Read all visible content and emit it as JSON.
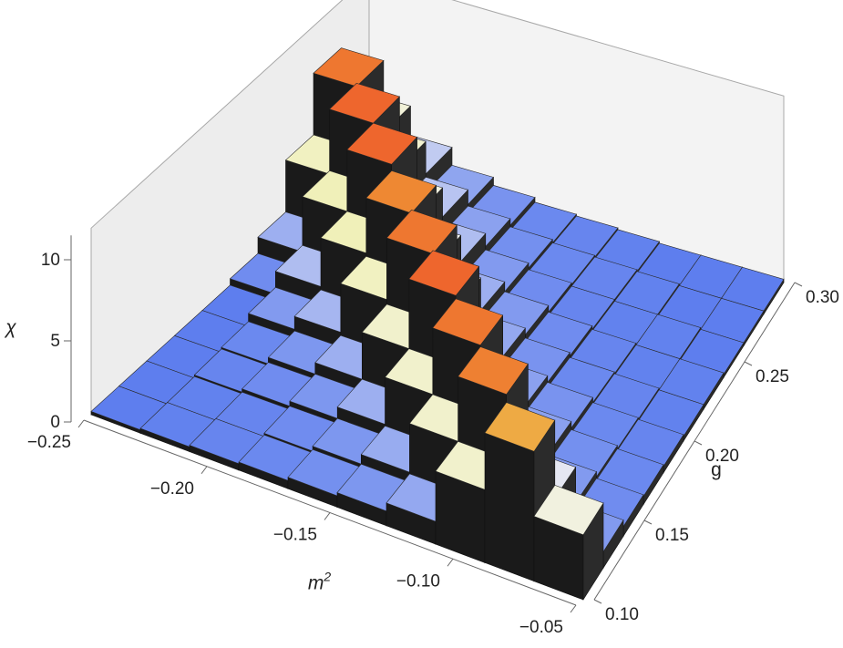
{
  "chart_data": {
    "type": "bar3d",
    "xlabel": "m",
    "xlabel_sup": "2",
    "ylabel": "g",
    "zlabel": "χ",
    "x_ticks": [
      "-0.25",
      "-0.20",
      "-0.15",
      "-0.10",
      "-0.05"
    ],
    "y_ticks": [
      "0.10",
      "0.15",
      "0.20",
      "0.25",
      "0.30"
    ],
    "z_ticks": [
      "0",
      "5",
      "10"
    ],
    "xlim": [
      -0.25,
      -0.05
    ],
    "ylim": [
      0.1,
      0.3
    ],
    "zlim": [
      0,
      12
    ],
    "x_bins": [
      -0.25,
      -0.23,
      -0.21,
      -0.19,
      -0.17,
      -0.15,
      -0.13,
      -0.11,
      -0.09,
      -0.07,
      -0.05
    ],
    "y_bins": [
      0.1,
      0.12,
      0.14,
      0.16,
      0.18,
      0.2,
      0.22,
      0.24,
      0.26,
      0.28,
      0.3
    ],
    "values": [
      [
        0.2,
        0.3,
        0.4,
        0.5,
        0.7,
        0.9,
        1.4,
        4.5,
        8.0,
        4.0
      ],
      [
        0.2,
        0.3,
        0.4,
        0.6,
        0.9,
        1.5,
        4.5,
        8.5,
        3.2,
        1.0
      ],
      [
        0.2,
        0.4,
        0.6,
        0.9,
        1.6,
        4.5,
        8.6,
        3.0,
        1.0,
        0.6
      ],
      [
        0.2,
        0.5,
        0.9,
        1.6,
        4.5,
        8.8,
        3.5,
        1.2,
        0.7,
        0.5
      ],
      [
        0.2,
        1.0,
        1.8,
        4.8,
        8.6,
        3.4,
        1.2,
        0.8,
        0.5,
        0.4
      ],
      [
        0.6,
        2.0,
        5.0,
        8.4,
        3.6,
        1.4,
        0.8,
        0.5,
        0.4,
        0.3
      ],
      [
        1.6,
        5.0,
        8.8,
        3.6,
        1.6,
        1.0,
        0.6,
        0.4,
        0.3,
        0.3
      ],
      [
        4.8,
        8.8,
        4.0,
        2.0,
        1.0,
        0.6,
        0.4,
        0.3,
        0.3,
        0.2
      ],
      [
        8.6,
        4.4,
        2.2,
        1.2,
        0.7,
        0.5,
        0.4,
        0.3,
        0.2,
        0.2
      ],
      [
        4.2,
        2.4,
        1.3,
        0.8,
        0.5,
        0.4,
        0.3,
        0.2,
        0.2,
        0.2
      ]
    ],
    "colors": {
      "low": "#5577ee",
      "mid": "#f2f2f2",
      "high_yellow": "#eeee66",
      "orange": "#ee8833",
      "red": "#ee2222",
      "side": "#1a1a1a",
      "panel": "#dedede"
    }
  }
}
